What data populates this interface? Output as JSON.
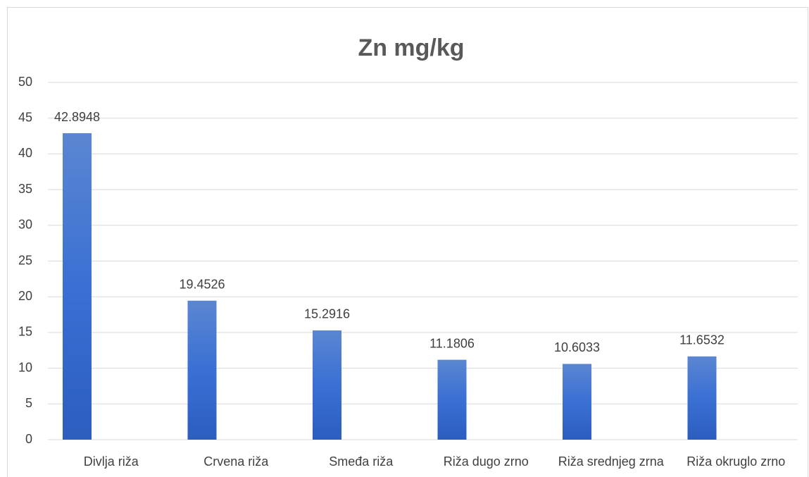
{
  "chart_data": {
    "type": "bar",
    "title": "Zn mg/kg",
    "categories": [
      "Divlja riža",
      "Crvena riža",
      "Smeđa riža",
      "Riža dugo zrno",
      "Riža srednjeg zrna",
      "Riža okruglo zrno"
    ],
    "values": [
      42.8948,
      19.4526,
      15.2916,
      11.1806,
      10.6033,
      11.6532
    ],
    "color": "#3a6ccb",
    "ylim": [
      0,
      50
    ],
    "yticks": [
      0,
      5,
      10,
      15,
      20,
      25,
      30,
      35,
      40,
      45,
      50
    ],
    "grid": true
  }
}
